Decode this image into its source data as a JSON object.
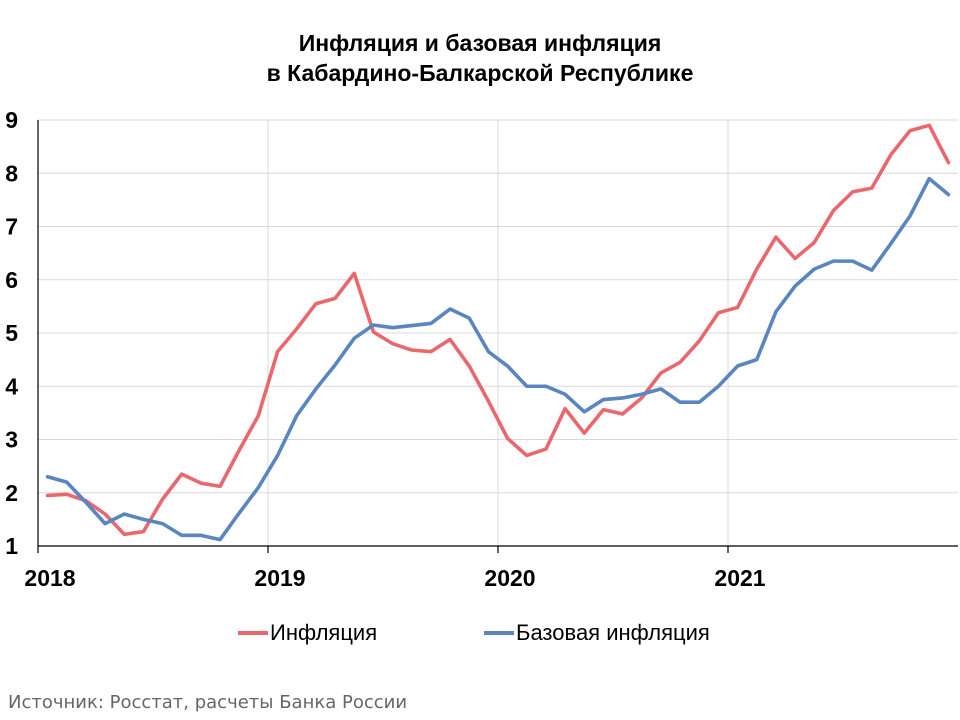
{
  "chart_data": {
    "type": "line",
    "title_line1": "Инфляция и базовая инфляция",
    "title_line2": "в Кабардино-Балкарской Республике",
    "xlabel": "",
    "ylabel": "",
    "ylim": [
      1,
      9
    ],
    "yticks": [
      1,
      2,
      3,
      4,
      5,
      6,
      7,
      8,
      9
    ],
    "xlim": [
      0,
      48
    ],
    "xticks": [
      {
        "pos": 0,
        "label": "2018"
      },
      {
        "pos": 12,
        "label": "2019"
      },
      {
        "pos": 24,
        "label": "2020"
      },
      {
        "pos": 36,
        "label": "2021"
      }
    ],
    "grid": true,
    "legend_position": "bottom",
    "series": [
      {
        "name": "Инфляция",
        "color": "#e8686e",
        "x": [
          0.5,
          1.5,
          2.5,
          3.5,
          4.5,
          5.5,
          6.5,
          7.5,
          8.5,
          9.5,
          10.5,
          11.5,
          12.5,
          13.5,
          14.5,
          15.5,
          16.5,
          17.5,
          18.5,
          19.5,
          20.5,
          21.5,
          22.5,
          23.5,
          24.5,
          25.5,
          26.5,
          27.5,
          28.5,
          29.5,
          30.5,
          31.5,
          32.5,
          33.5,
          34.5,
          35.5,
          36.5,
          37.5,
          38.5,
          39.5,
          40.5,
          41.5,
          42.5,
          43.5,
          44.5,
          45.5,
          46.5,
          47.5
        ],
        "values": [
          1.95,
          1.97,
          1.85,
          1.6,
          1.22,
          1.27,
          1.88,
          2.35,
          2.18,
          2.12,
          2.8,
          3.45,
          4.65,
          5.08,
          5.55,
          5.65,
          6.12,
          5.02,
          4.8,
          4.68,
          4.65,
          4.88,
          4.38,
          3.72,
          3.02,
          2.7,
          2.82,
          3.58,
          3.12,
          3.56,
          3.48,
          3.78,
          4.25,
          4.45,
          4.85,
          5.38,
          5.48,
          6.2,
          6.8,
          6.4,
          6.7,
          7.3,
          7.65,
          7.72,
          8.35,
          8.8,
          8.9,
          8.2
        ]
      },
      {
        "name": "Базовая инфляция",
        "color": "#5a86c0",
        "x": [
          0.5,
          1.5,
          2.5,
          3.5,
          4.5,
          5.5,
          6.5,
          7.5,
          8.5,
          9.5,
          10.5,
          11.5,
          12.5,
          13.5,
          14.5,
          15.5,
          16.5,
          17.5,
          18.5,
          19.5,
          20.5,
          21.5,
          22.5,
          23.5,
          24.5,
          25.5,
          26.5,
          27.5,
          28.5,
          29.5,
          30.5,
          31.5,
          32.5,
          33.5,
          34.5,
          35.5,
          36.5,
          37.5,
          38.5,
          39.5,
          40.5,
          41.5,
          42.5,
          43.5,
          44.5,
          45.5,
          46.5,
          47.5
        ],
        "values": [
          2.3,
          2.2,
          1.82,
          1.42,
          1.6,
          1.5,
          1.42,
          1.2,
          1.2,
          1.12,
          1.62,
          2.1,
          2.7,
          3.45,
          3.95,
          4.4,
          4.9,
          5.15,
          5.1,
          5.14,
          5.18,
          5.45,
          5.28,
          4.65,
          4.38,
          4.0,
          4.0,
          3.85,
          3.52,
          3.75,
          3.78,
          3.85,
          3.95,
          3.7,
          3.7,
          4.0,
          4.38,
          4.5,
          5.4,
          5.88,
          6.2,
          6.35,
          6.35,
          6.18,
          6.68,
          7.2,
          7.9,
          7.6
        ]
      }
    ]
  },
  "source": "Источник: Росстат, расчеты Банка России"
}
